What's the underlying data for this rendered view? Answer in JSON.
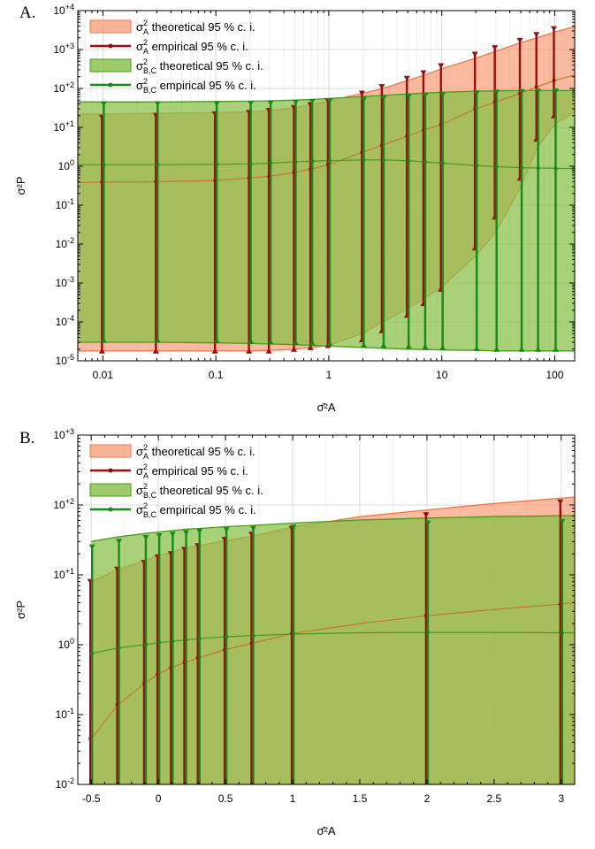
{
  "colors": {
    "orange_fill": "#f7a07a",
    "orange_line": "#ea7a4c",
    "green_fill": "#86bf46",
    "green_line": "#4a9a1a",
    "dark_red": "#9b0d0d",
    "dark_green": "#168a16",
    "overlap": "#8e9a3a",
    "mid_line": "#c07a2a"
  },
  "chart_data": [
    {
      "type": "area",
      "panel_label": "A.",
      "xlabel": "σ̂²A",
      "ylabel": "σ²P",
      "xscale": "log",
      "yscale": "log",
      "xlim": [
        0.006,
        150
      ],
      "ylim": [
        1e-05,
        10000.0
      ],
      "x_ticks": [
        0.01,
        0.1,
        1,
        10,
        100
      ],
      "x_tick_labels": [
        "0.01",
        "0.1",
        "1",
        "10",
        "100"
      ],
      "y_ticks": [
        1e-05,
        0.0001,
        0.001,
        0.01,
        0.1,
        1.0,
        10.0,
        100.0,
        1000.0,
        10000.0
      ],
      "y_tick_labels": [
        {
          "base": "10",
          "exp": "-5"
        },
        {
          "base": "10",
          "exp": "-4"
        },
        {
          "base": "10",
          "exp": "-3"
        },
        {
          "base": "10",
          "exp": "-2"
        },
        {
          "base": "10",
          "exp": "-1"
        },
        {
          "base": "10",
          "exp": "0"
        },
        {
          "base": "10",
          "exp": "+1"
        },
        {
          "base": "10",
          "exp": "+2"
        },
        {
          "base": "10",
          "exp": "+3"
        },
        {
          "base": "10",
          "exp": "+4"
        }
      ],
      "grid": true,
      "legend_position": "top-left",
      "legend": [
        {
          "key": "A_theo",
          "sym": "σ",
          "sup": "2",
          "sub": "A",
          "text": " theoretical 95 % c. i.",
          "kind": "fill",
          "color": "#f7a07a",
          "stroke": "#ea7a4c"
        },
        {
          "key": "A_emp",
          "sym": "σ",
          "sup": "2",
          "sub": "A",
          "text": " empirical 95 % c. i.",
          "kind": "line",
          "color": "#9b0d0d"
        },
        {
          "key": "BC_theo",
          "sym": "σ",
          "sup": "2",
          "sub": "B,C",
          "text": " theoretical 95 % c. i.",
          "kind": "fill",
          "color": "#86bf46",
          "stroke": "#4a9a1a"
        },
        {
          "key": "BC_emp",
          "sym": "σ",
          "sup": "2",
          "sub": "B,C",
          "text": " empirical 95 % c. i.",
          "kind": "line",
          "color": "#168a16"
        }
      ],
      "A_theoretical": {
        "x": [
          0.006,
          0.01,
          0.03,
          0.1,
          0.2,
          0.3,
          0.5,
          0.7,
          1,
          2,
          3,
          5,
          7,
          10,
          20,
          30,
          50,
          70,
          100,
          150
        ],
        "lower": [
          1.8e-05,
          1.8e-05,
          1.8e-05,
          1.8e-05,
          1.8e-05,
          1.85e-05,
          2e-05,
          2.2e-05,
          2.5e-05,
          5e-05,
          0.0001,
          0.00022,
          0.0004,
          0.0008,
          0.005,
          0.02,
          0.3,
          3,
          12,
          25
        ],
        "mid": [
          0.38,
          0.39,
          0.4,
          0.43,
          0.5,
          0.55,
          0.7,
          0.85,
          1.1,
          2.3,
          3.5,
          6,
          8.5,
          12,
          30,
          45,
          75,
          110,
          160,
          220
        ],
        "upper": [
          22,
          22,
          23,
          24,
          25,
          27,
          32,
          38,
          48,
          75,
          100,
          160,
          220,
          320,
          600,
          900,
          1500,
          2000,
          2800,
          3900
        ]
      },
      "A_empirical": {
        "x": [
          0.01,
          0.03,
          0.1,
          0.2,
          0.3,
          0.5,
          0.7,
          1,
          2,
          3,
          5,
          7,
          10,
          20,
          30,
          50,
          70,
          100
        ],
        "lower": [
          1.8e-05,
          1.8e-05,
          1.8e-05,
          1.8e-05,
          1.8e-05,
          2e-05,
          2.2e-05,
          2.5e-05,
          3.5e-05,
          6e-05,
          0.00015,
          0.0003,
          0.0007,
          0.008,
          0.05,
          0.5,
          5,
          20
        ],
        "mid": [
          0.39,
          0.4,
          0.43,
          0.5,
          0.55,
          0.7,
          0.85,
          1.1,
          2.3,
          3.5,
          6,
          8.5,
          12,
          30,
          45,
          75,
          110,
          160
        ],
        "upper": [
          18,
          20,
          22,
          24,
          27,
          32,
          38,
          48,
          75,
          110,
          180,
          250,
          380,
          750,
          1100,
          1700,
          2400,
          3400
        ]
      },
      "BC_theoretical": {
        "x": [
          0.006,
          0.01,
          0.03,
          0.1,
          0.2,
          0.3,
          0.5,
          0.7,
          1,
          2,
          3,
          5,
          7,
          10,
          20,
          30,
          50,
          70,
          100,
          150
        ],
        "lower": [
          3e-05,
          3e-05,
          3e-05,
          2.9e-05,
          2.8e-05,
          2.7e-05,
          2.6e-05,
          2.5e-05,
          2.4e-05,
          2.2e-05,
          2.1e-05,
          2e-05,
          1.95e-05,
          1.9e-05,
          1.85e-05,
          1.8e-05,
          1.8e-05,
          1.8e-05,
          1.8e-05,
          1.8e-05
        ],
        "mid": [
          1.1,
          1.1,
          1.1,
          1.12,
          1.15,
          1.2,
          1.3,
          1.35,
          1.4,
          1.45,
          1.45,
          1.4,
          1.3,
          1.2,
          1.05,
          0.98,
          0.92,
          0.9,
          0.88,
          0.87
        ],
        "upper": [
          45,
          45,
          45,
          46,
          47,
          48,
          50,
          52,
          55,
          62,
          66,
          72,
          76,
          80,
          85,
          87,
          88,
          88,
          88,
          88
        ]
      },
      "BC_empirical": {
        "x": [
          0.01,
          0.03,
          0.1,
          0.2,
          0.3,
          0.5,
          0.7,
          1,
          2,
          3,
          5,
          7,
          10,
          20,
          30,
          50,
          70,
          100
        ],
        "lower": [
          3.4e-05,
          3.4e-05,
          3.3e-05,
          3.2e-05,
          3.1e-05,
          3e-05,
          2.9e-05,
          2.8e-05,
          2.6e-05,
          2.5e-05,
          2.4e-05,
          2.3e-05,
          2.2e-05,
          2.1e-05,
          2e-05,
          2e-05,
          2e-05,
          2e-05
        ],
        "mid": [
          1.1,
          1.1,
          1.12,
          1.15,
          1.2,
          1.3,
          1.35,
          1.4,
          1.45,
          1.45,
          1.4,
          1.3,
          1.2,
          1.05,
          0.98,
          0.92,
          0.9,
          0.88
        ],
        "upper": [
          40,
          40,
          40,
          41,
          42,
          44,
          46,
          48,
          52,
          56,
          62,
          66,
          70,
          76,
          80,
          82,
          84,
          85
        ]
      }
    },
    {
      "type": "area",
      "panel_label": "B.",
      "xlabel": "σ̂²A",
      "ylabel": "σ²P",
      "xscale": "linear",
      "yscale": "log",
      "xlim": [
        -0.6,
        3.1
      ],
      "ylim": [
        0.01,
        1000.0
      ],
      "x_ticks": [
        -0.5,
        0,
        0.5,
        1,
        1.5,
        2,
        2.5,
        3
      ],
      "x_tick_labels": [
        "-0.5",
        "0",
        "0.5",
        "1",
        "1.5",
        "2",
        "2.5",
        "3"
      ],
      "y_ticks": [
        0.01,
        0.1,
        1.0,
        10.0,
        100.0,
        1000.0
      ],
      "y_tick_labels": [
        {
          "base": "10",
          "exp": "-2"
        },
        {
          "base": "10",
          "exp": "-1"
        },
        {
          "base": "10",
          "exp": "0"
        },
        {
          "base": "10",
          "exp": "+1"
        },
        {
          "base": "10",
          "exp": "+2"
        },
        {
          "base": "10",
          "exp": "+3"
        }
      ],
      "grid": true,
      "legend_position": "top-left",
      "legend": [
        {
          "key": "A_theo",
          "sym": "σ",
          "sup": "2",
          "sub": "A",
          "text": " theoretical 95 % c. i.",
          "kind": "fill",
          "color": "#f7a07a",
          "stroke": "#ea7a4c"
        },
        {
          "key": "A_emp",
          "sym": "σ",
          "sup": "2",
          "sub": "A",
          "text": " empirical 95 % c. i.",
          "kind": "line",
          "color": "#9b0d0d"
        },
        {
          "key": "BC_theo",
          "sym": "σ",
          "sup": "2",
          "sub": "B,C",
          "text": " theoretical 95 % c. i.",
          "kind": "fill",
          "color": "#86bf46",
          "stroke": "#4a9a1a"
        },
        {
          "key": "BC_emp",
          "sym": "σ",
          "sup": "2",
          "sub": "B,C",
          "text": " empirical 95 % c. i.",
          "kind": "line",
          "color": "#168a16"
        }
      ],
      "A_theoretical": {
        "x": [
          -0.5,
          -0.3,
          -0.1,
          0,
          0.1,
          0.2,
          0.3,
          0.5,
          0.7,
          1,
          1.5,
          2,
          2.5,
          3,
          3.1
        ],
        "lower": [
          0.01,
          0.01,
          0.01,
          0.01,
          0.01,
          0.01,
          0.01,
          0.01,
          0.01,
          0.01,
          0.01,
          0.01,
          0.01,
          0.01,
          0.01
        ],
        "mid": [
          0.045,
          0.14,
          0.28,
          0.38,
          0.47,
          0.56,
          0.65,
          0.85,
          1.05,
          1.45,
          2.0,
          2.6,
          3.2,
          3.8,
          4.0
        ],
        "upper": [
          8,
          12,
          16,
          19,
          21,
          24,
          26,
          31,
          36,
          48,
          68,
          85,
          105,
          125,
          130
        ]
      },
      "A_empirical": {
        "x": [
          -0.5,
          -0.3,
          -0.1,
          0,
          0.1,
          0.2,
          0.3,
          0.5,
          0.7,
          1,
          2,
          3
        ],
        "lower": [
          0.01,
          0.01,
          0.01,
          0.01,
          0.01,
          0.01,
          0.01,
          0.01,
          0.01,
          0.01,
          0.01,
          0.01
        ],
        "mid": [
          0.045,
          0.14,
          0.28,
          0.38,
          0.47,
          0.56,
          0.65,
          0.85,
          1.05,
          1.45,
          2.6,
          3.8
        ],
        "upper": [
          8,
          12,
          15,
          18,
          20,
          23,
          26,
          32,
          38,
          46,
          72,
          110
        ]
      },
      "BC_theoretical": {
        "x": [
          -0.5,
          -0.3,
          -0.1,
          0,
          0.1,
          0.2,
          0.3,
          0.5,
          0.7,
          1,
          1.5,
          2,
          2.5,
          3,
          3.1
        ],
        "lower": [
          0.01,
          0.01,
          0.01,
          0.01,
          0.01,
          0.01,
          0.01,
          0.01,
          0.01,
          0.01,
          0.01,
          0.01,
          0.01,
          0.01,
          0.01
        ],
        "mid": [
          0.75,
          0.9,
          1.0,
          1.07,
          1.12,
          1.17,
          1.22,
          1.3,
          1.35,
          1.42,
          1.48,
          1.5,
          1.5,
          1.48,
          1.48
        ],
        "upper": [
          30,
          35,
          39,
          41,
          43,
          45,
          46,
          49,
          51,
          55,
          61,
          65,
          68,
          70,
          70
        ]
      },
      "BC_empirical": {
        "x": [
          -0.5,
          -0.3,
          -0.1,
          0,
          0.1,
          0.2,
          0.3,
          0.5,
          0.7,
          1,
          2,
          3
        ],
        "lower": [
          0.01,
          0.01,
          0.01,
          0.01,
          0.01,
          0.01,
          0.01,
          0.01,
          0.01,
          0.01,
          0.01,
          0.01
        ],
        "mid": [
          0.75,
          0.9,
          1.0,
          1.07,
          1.12,
          1.17,
          1.22,
          1.3,
          1.35,
          1.42,
          1.5,
          1.48
        ],
        "upper": [
          25,
          30,
          34,
          36,
          38,
          40,
          42,
          44,
          46,
          48,
          55,
          58
        ]
      }
    }
  ]
}
